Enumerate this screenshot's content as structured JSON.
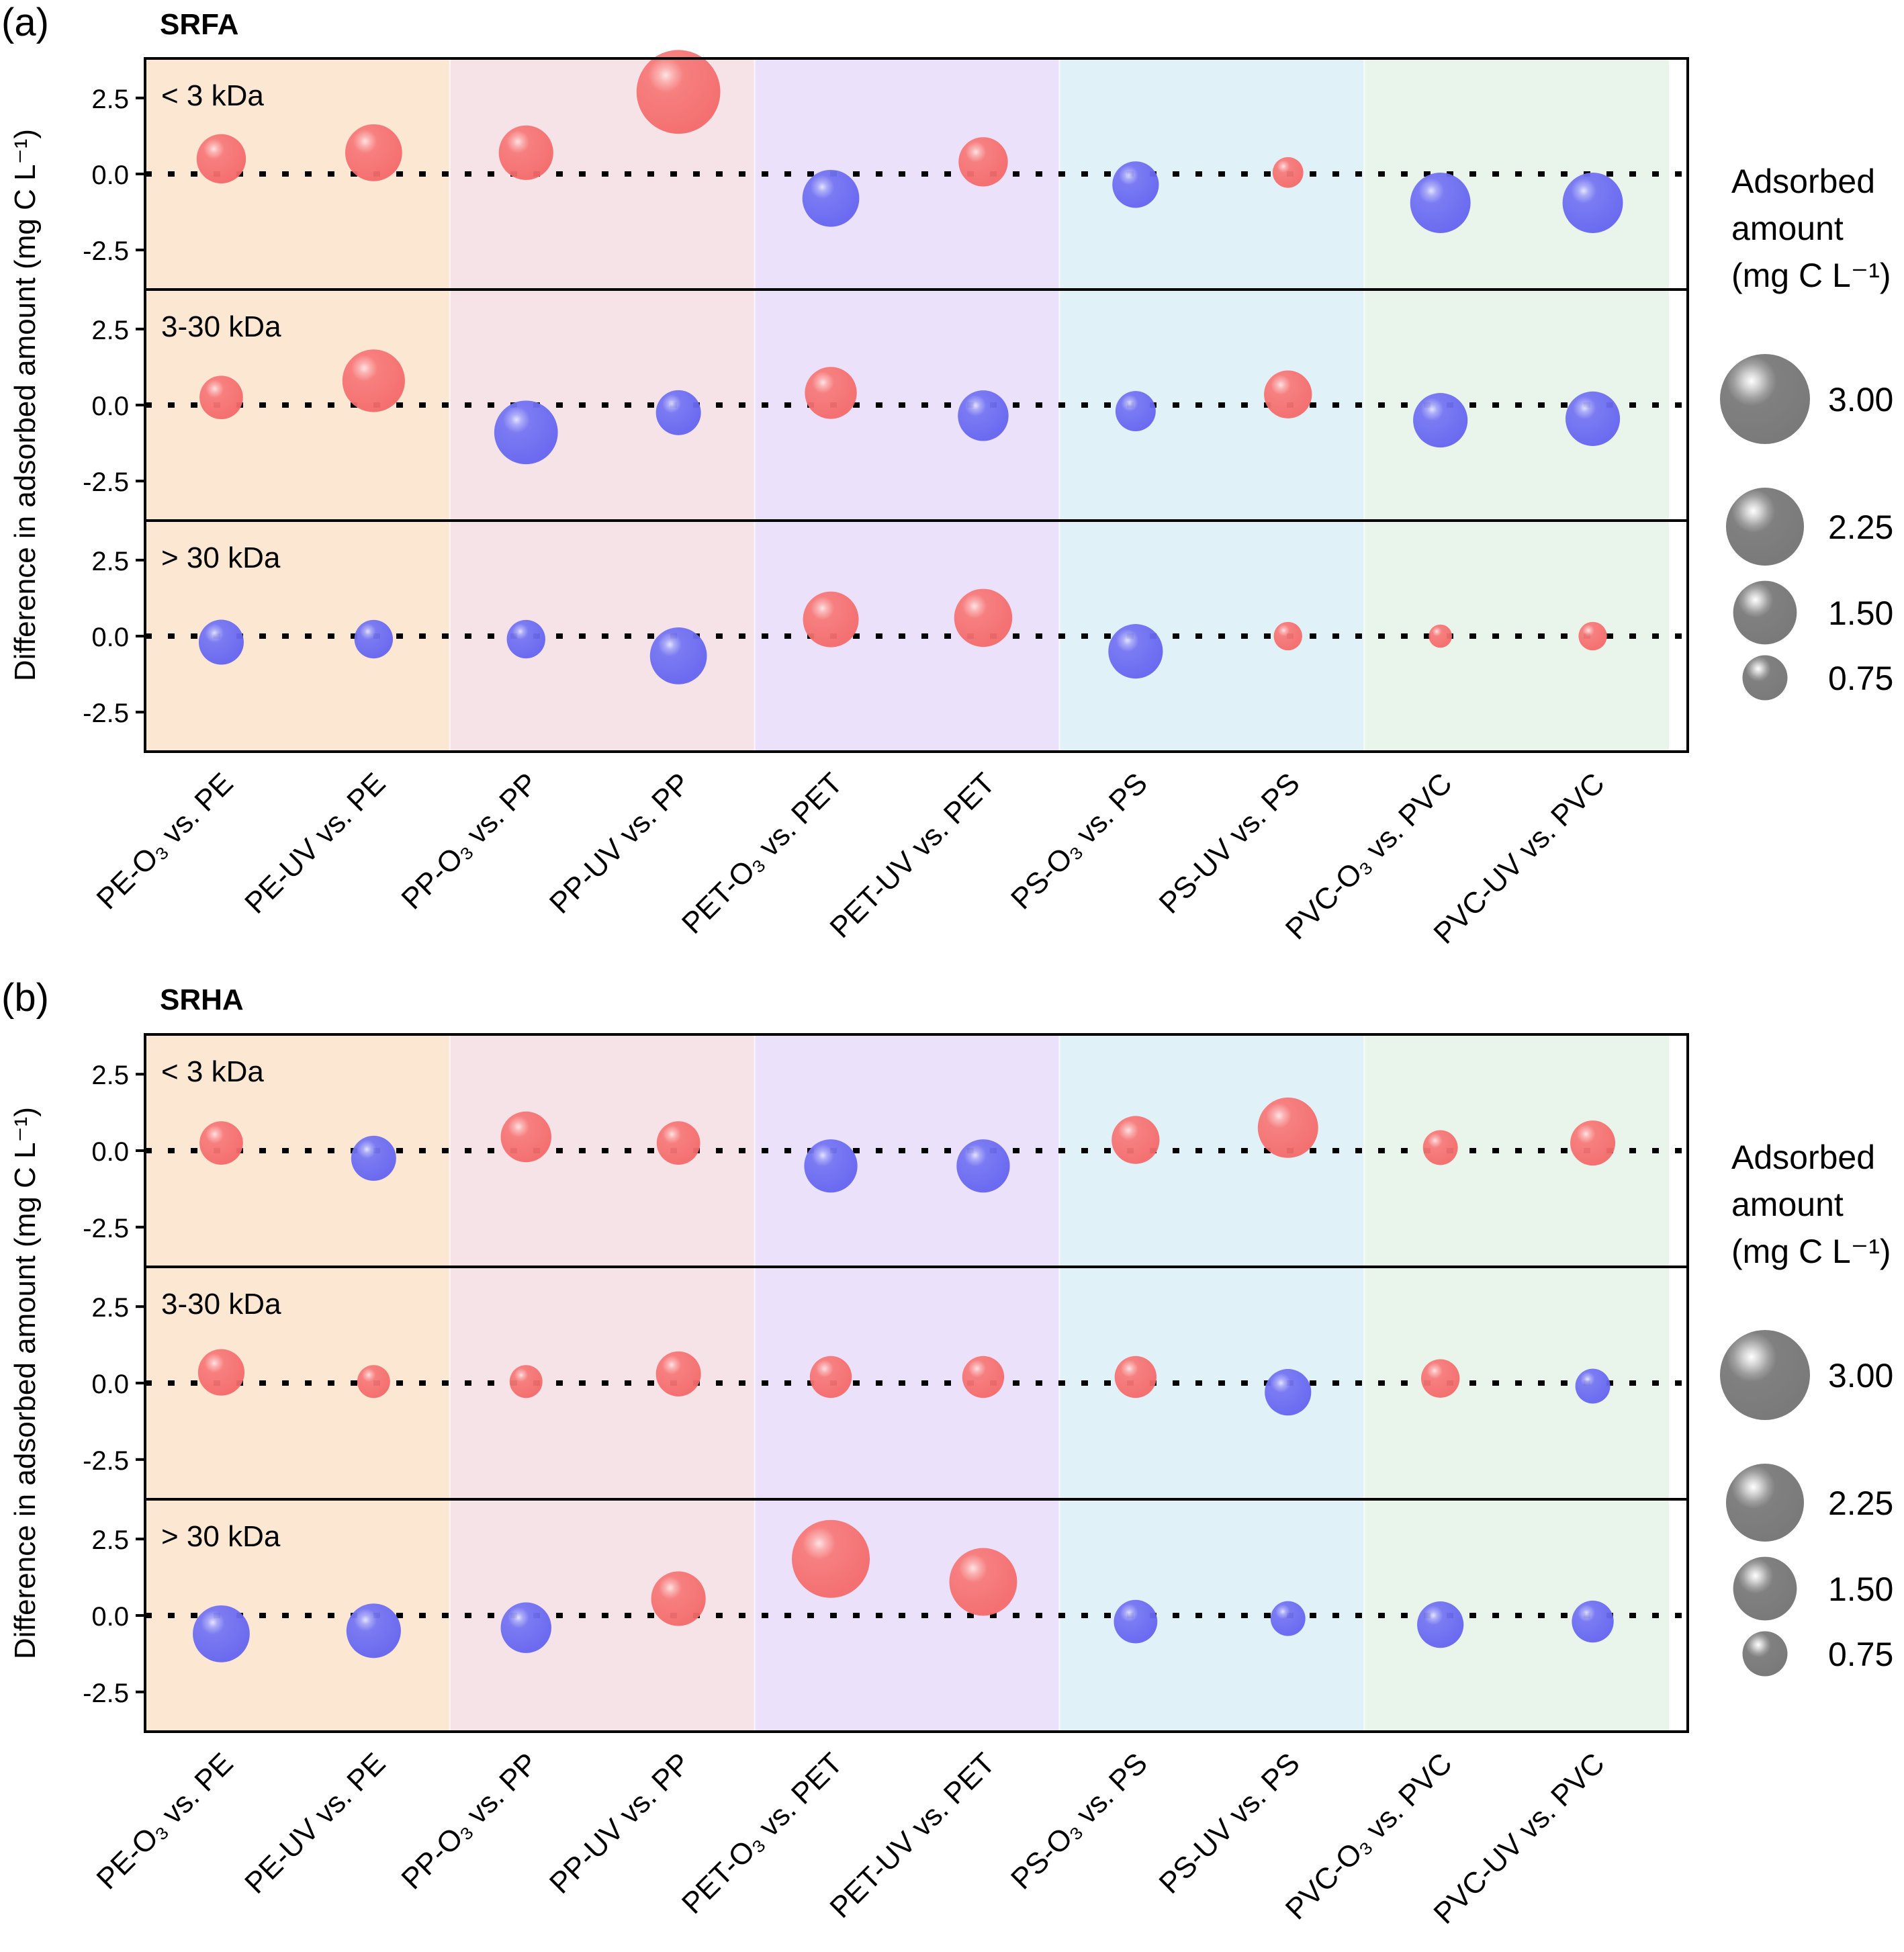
{
  "chart_data": [
    {
      "type": "scatter",
      "subtype": "bubble",
      "panel_label": "(a)",
      "title": "SRFA",
      "ylabel": "Difference in adsorbed amount (mg C L⁻¹)",
      "ylim": [
        -3.8,
        3.8
      ],
      "yticks": [
        -2.5,
        0.0,
        2.5
      ],
      "ytick_labels": [
        "-2.5",
        "0.0",
        "2.5"
      ],
      "reference_line": 0.0,
      "categories": [
        "PE-O₃ vs. PE",
        "PE-UV vs. PE",
        "PP-O₃ vs. PP",
        "PP-UV vs. PP",
        "PET-O₃ vs. PET",
        "PET-UV vs. PET",
        "PS-O₃ vs. PS",
        "PS-UV vs. PS",
        "PVC-O₃ vs. PVC",
        "PVC-UV vs. PVC"
      ],
      "background_groups": [
        {
          "name": "PE",
          "color": "#fbe7d2"
        },
        {
          "name": "PP",
          "color": "#f5e3e7"
        },
        {
          "name": "PET",
          "color": "#ebe1fa"
        },
        {
          "name": "PS",
          "color": "#e1f1f8"
        },
        {
          "name": "PVC",
          "color": "#e9f5ea"
        }
      ],
      "panels": [
        {
          "label": "< 3 kDa",
          "values": [
            0.5,
            0.7,
            0.7,
            2.7,
            -0.8,
            0.4,
            -0.35,
            0.05,
            -0.95,
            -0.95
          ],
          "sizes": [
            0.9,
            1.2,
            1.1,
            2.6,
            1.2,
            0.9,
            0.8,
            0.35,
            1.35,
            1.35
          ]
        },
        {
          "label": "3-30 kDa",
          "values": [
            0.25,
            0.8,
            -0.9,
            -0.25,
            0.4,
            -0.35,
            -0.2,
            0.35,
            -0.5,
            -0.45
          ],
          "sizes": [
            0.7,
            1.45,
            1.5,
            0.75,
            1.0,
            0.95,
            0.6,
            0.85,
            1.1,
            1.1
          ]
        },
        {
          "label": "> 30 kDa",
          "values": [
            -0.2,
            -0.1,
            -0.1,
            -0.65,
            0.55,
            0.6,
            -0.5,
            0.0,
            0.0,
            0.0
          ],
          "sizes": [
            0.75,
            0.55,
            0.55,
            1.2,
            1.15,
            1.25,
            1.1,
            0.3,
            0.2,
            0.3
          ]
        }
      ],
      "legend": {
        "title_lines": [
          "Adsorbed",
          "amount",
          "(mg C L⁻¹)"
        ],
        "sizes": [
          3.0,
          2.25,
          1.5,
          0.75
        ],
        "labels": [
          "3.00",
          "2.25",
          "1.50",
          "0.75"
        ],
        "position": "right"
      },
      "colors": {
        "positive": "#f76b6b",
        "negative": "#6e6ef5",
        "legend_bubble": "#808080"
      }
    },
    {
      "type": "scatter",
      "subtype": "bubble",
      "panel_label": "(b)",
      "title": "SRHA",
      "ylabel": "Difference in adsorbed amount (mg C L⁻¹)",
      "ylim": [
        -3.8,
        3.8
      ],
      "yticks": [
        -2.5,
        0.0,
        2.5
      ],
      "ytick_labels": [
        "-2.5",
        "0.0",
        "2.5"
      ],
      "reference_line": 0.0,
      "categories": [
        "PE-O₃ vs. PE",
        "PE-UV vs. PE",
        "PP-O₃ vs. PP",
        "PP-UV vs. PP",
        "PET-O₃ vs. PET",
        "PET-UV vs. PET",
        "PS-O₃ vs. PS",
        "PS-UV vs. PS",
        "PVC-O₃ vs. PVC",
        "PVC-UV vs. PVC"
      ],
      "background_groups": [
        {
          "name": "PE",
          "color": "#fbe7d2"
        },
        {
          "name": "PP",
          "color": "#f5e3e7"
        },
        {
          "name": "PET",
          "color": "#ebe1fa"
        },
        {
          "name": "PS",
          "color": "#e1f1f8"
        },
        {
          "name": "PVC",
          "color": "#e9f5ea"
        }
      ],
      "panels": [
        {
          "label": "< 3 kDa",
          "values": [
            0.25,
            -0.25,
            0.45,
            0.25,
            -0.5,
            -0.5,
            0.35,
            0.75,
            0.1,
            0.25
          ],
          "sizes": [
            0.7,
            0.75,
            0.95,
            0.7,
            1.05,
            1.05,
            0.85,
            1.35,
            0.45,
            0.75
          ]
        },
        {
          "label": "3-30 kDa",
          "values": [
            0.35,
            0.05,
            0.05,
            0.3,
            0.2,
            0.2,
            0.2,
            -0.3,
            0.15,
            -0.1
          ],
          "sizes": [
            0.8,
            0.4,
            0.4,
            0.75,
            0.65,
            0.65,
            0.65,
            0.8,
            0.55,
            0.45
          ]
        },
        {
          "label": "> 30 kDa",
          "values": [
            -0.6,
            -0.5,
            -0.4,
            0.55,
            1.85,
            1.1,
            -0.2,
            -0.1,
            -0.3,
            -0.2
          ],
          "sizes": [
            1.2,
            1.1,
            0.95,
            1.1,
            2.25,
            1.7,
            0.7,
            0.45,
            0.8,
            0.65
          ]
        }
      ],
      "legend": {
        "title_lines": [
          "Adsorbed",
          "amount",
          "(mg C L⁻¹)"
        ],
        "sizes": [
          3.0,
          2.25,
          1.5,
          0.75
        ],
        "labels": [
          "3.00",
          "2.25",
          "1.50",
          "0.75"
        ],
        "position": "right"
      },
      "colors": {
        "positive": "#f76b6b",
        "negative": "#6e6ef5",
        "legend_bubble": "#808080"
      }
    }
  ]
}
